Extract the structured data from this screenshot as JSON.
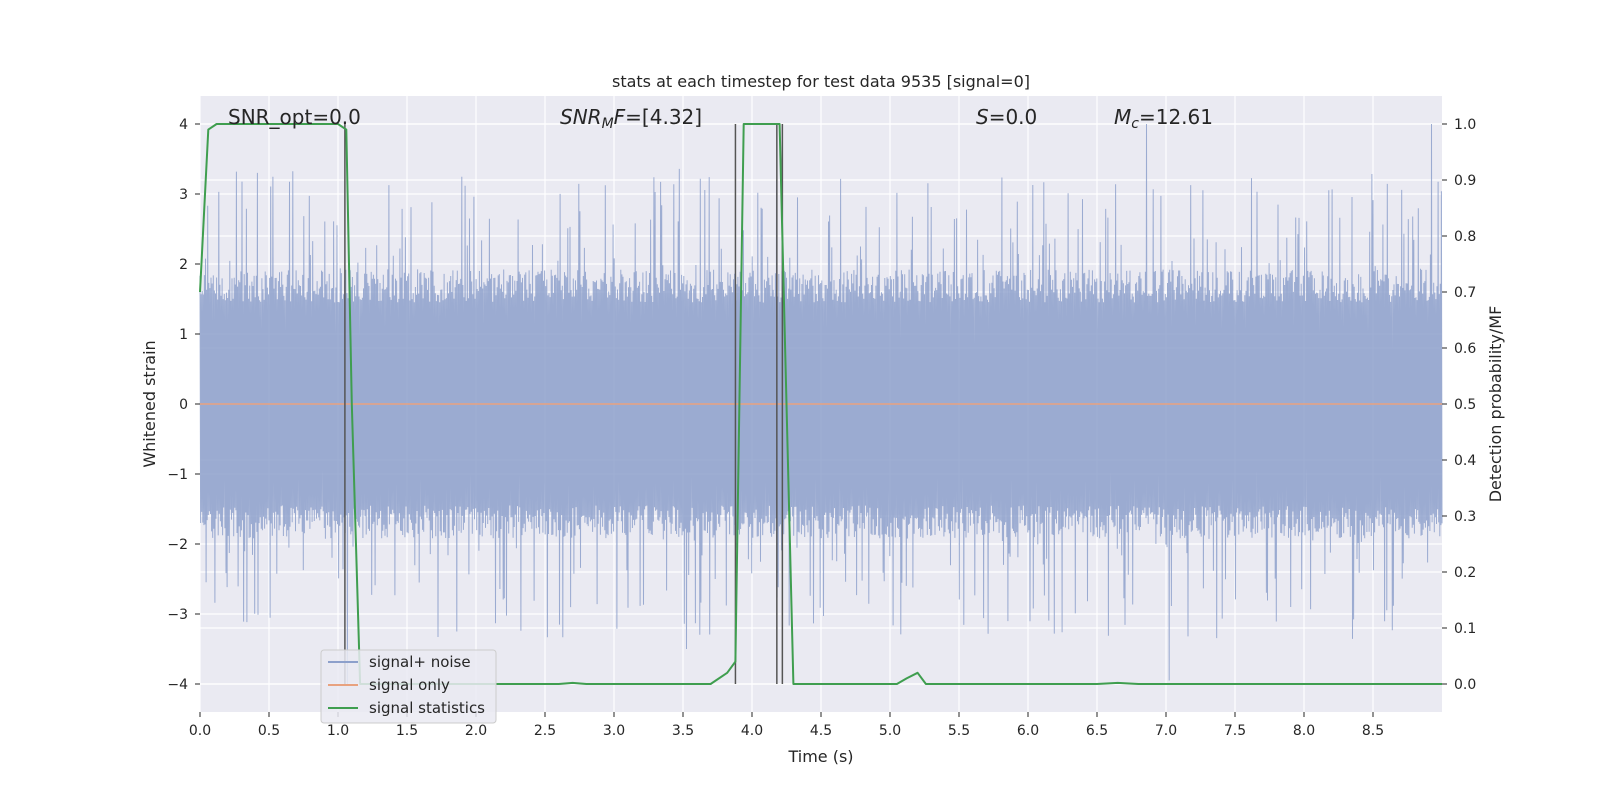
{
  "chart_data": {
    "type": "line",
    "title": "stats at each timestep for test data 9535 [signal=0]",
    "xlabel": "Time (s)",
    "ylabel": "Whitened strain",
    "ylabel_right": "Detection probability/MF",
    "xlim": [
      0.0,
      9.0
    ],
    "ylim": [
      -4.4,
      4.4
    ],
    "ylim_right": [
      -0.05,
      1.05
    ],
    "x_ticks": [
      "0.0",
      "0.5",
      "1.0",
      "1.5",
      "2.0",
      "2.5",
      "3.0",
      "3.5",
      "4.0",
      "4.5",
      "5.0",
      "5.5",
      "6.0",
      "6.5",
      "7.0",
      "7.5",
      "8.0",
      "8.5"
    ],
    "y_ticks": [
      "−4",
      "−3",
      "−2",
      "−1",
      "0",
      "1",
      "2",
      "3",
      "4"
    ],
    "y_ticks_right": [
      "0.0",
      "0.1",
      "0.2",
      "0.3",
      "0.4",
      "0.5",
      "0.6",
      "0.7",
      "0.8",
      "0.9",
      "1.0"
    ],
    "grid": true,
    "background": "#eaeaf2",
    "annotations": {
      "snr_opt": "SNR_opt=0.0",
      "snr_mf_main": "SNR",
      "snr_mf_sub": "M",
      "snr_mf_rest": "F",
      "snr_mf_value": "=[4.32]",
      "s_label": "S",
      "s_value": "=0.0",
      "mc_main": "M",
      "mc_sub": "c",
      "mc_value": "=12.61"
    },
    "legend": {
      "placement": "lower-left",
      "entries": [
        {
          "label": "signal+ noise",
          "color": "#8da0cb"
        },
        {
          "label": "signal only",
          "color": "#e8a27f"
        },
        {
          "label": "signal statistics",
          "color": "#3f9e4f"
        }
      ]
    },
    "series": [
      {
        "name": "signal+ noise",
        "color": "#8da0cb",
        "kind": "noise-band",
        "sample_count": 2250,
        "peaks": [
          {
            "x": 1.07,
            "y": -4.0
          },
          {
            "x": 1.86,
            "y": -3.25
          },
          {
            "x": 3.52,
            "y": -3.5
          },
          {
            "x": 6.86,
            "y": 4.0
          },
          {
            "x": 7.02,
            "y": -3.95
          },
          {
            "x": 8.92,
            "y": 4.0
          }
        ]
      },
      {
        "name": "signal only",
        "color": "#e8a27f",
        "x": [
          0.0,
          9.0
        ],
        "y": [
          0.0,
          0.0
        ]
      },
      {
        "name": "signal statistics",
        "color": "#3f9e4f",
        "x": [
          0.0,
          0.06,
          0.12,
          1.0,
          1.06,
          1.1,
          1.14,
          1.16,
          2.6,
          2.7,
          2.8,
          3.7,
          3.82,
          3.88,
          3.94,
          4.0,
          4.2,
          4.3,
          5.05,
          5.12,
          5.2,
          5.26,
          6.5,
          6.65,
          6.8,
          9.0
        ],
        "y": [
          0.7,
          0.99,
          1.0,
          1.0,
          0.99,
          0.5,
          0.17,
          0.0,
          0.0,
          0.002,
          0.0,
          0.0,
          0.02,
          0.04,
          1.0,
          1.0,
          1.0,
          0.0,
          0.0,
          0.01,
          0.02,
          0.0,
          0.0,
          0.002,
          0.0,
          0.0
        ]
      }
    ],
    "markers": {
      "color": "#555555",
      "x": [
        1.05,
        3.88,
        4.18,
        4.22
      ]
    }
  }
}
